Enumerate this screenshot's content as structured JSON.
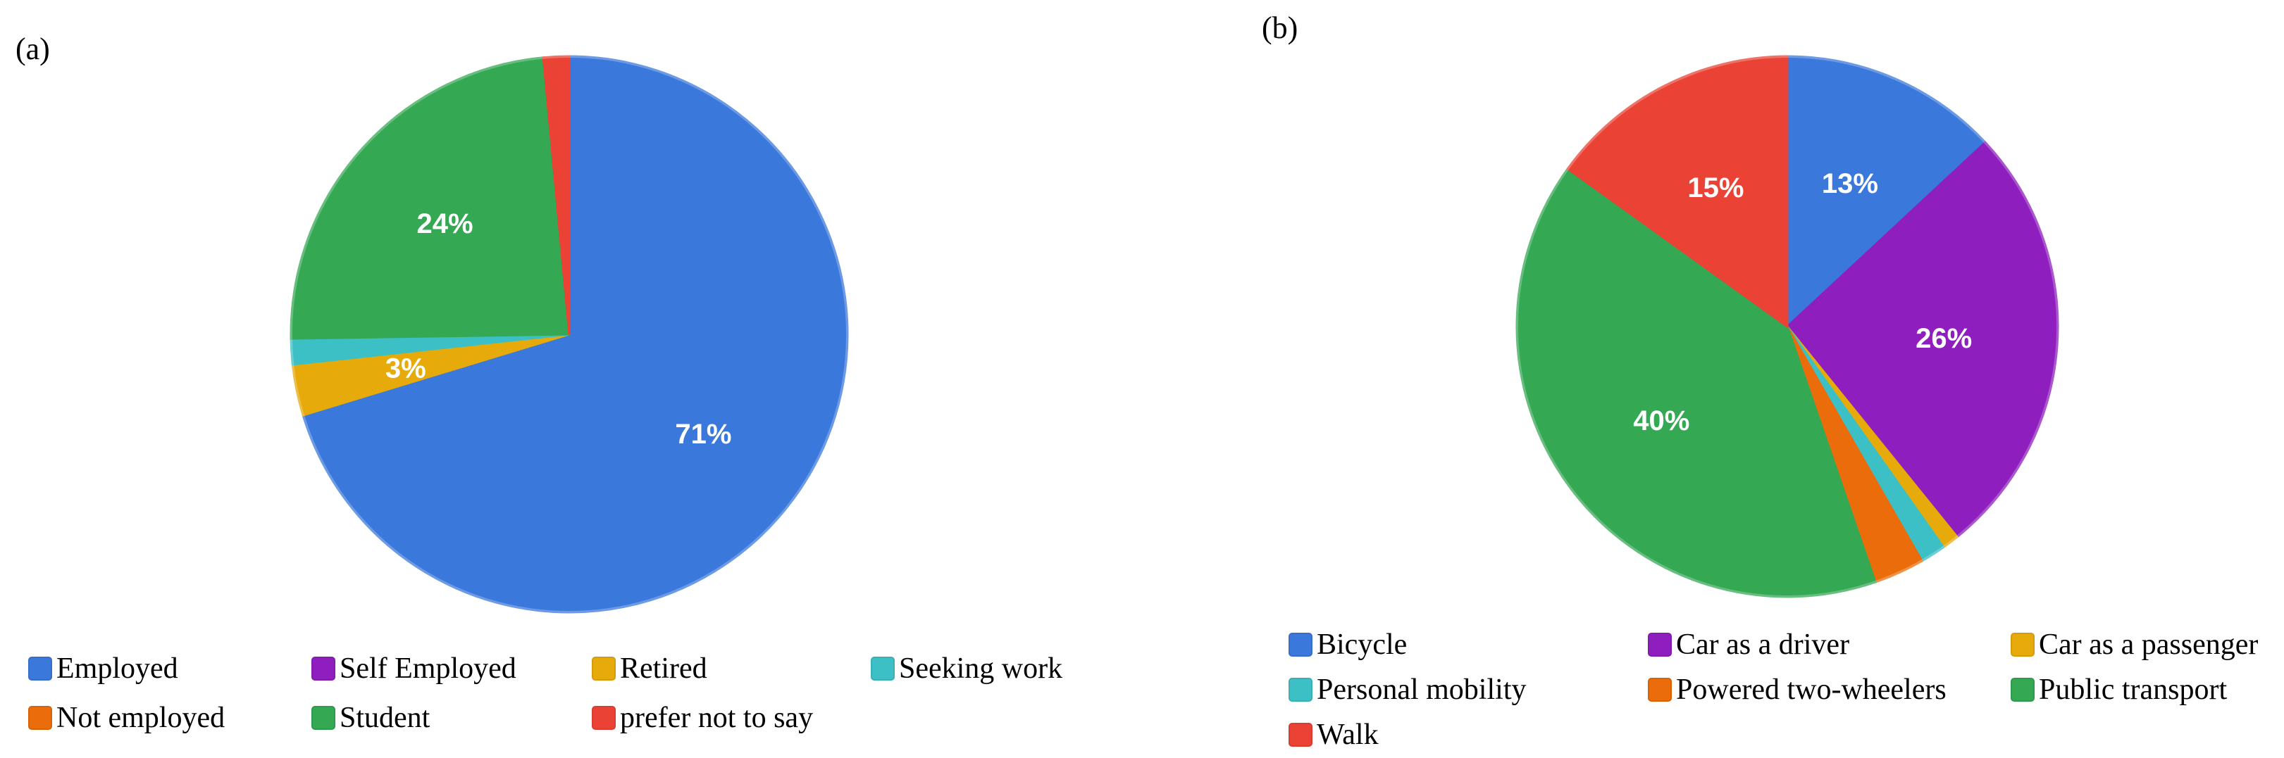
{
  "chart_data": [
    {
      "type": "pie",
      "panel_label": "(a)",
      "title": "",
      "slices": [
        {
          "label": "Employed",
          "value": 71,
          "color": "#3b78db",
          "text": "71%"
        },
        {
          "label": "Self Employed",
          "value": 0,
          "color": "#8e1ebd",
          "text": ""
        },
        {
          "label": "Retired",
          "value": 3,
          "color": "#e6aa0b",
          "text": "3%"
        },
        {
          "label": "Seeking work",
          "value": 1.5,
          "color": "#3dbfc6",
          "text": ""
        },
        {
          "label": "Not employed",
          "value": 0,
          "color": "#ea6c0a",
          "text": ""
        },
        {
          "label": "Student",
          "value": 24,
          "color": "#34a853",
          "text": "24%"
        },
        {
          "label": "prefer not to say",
          "value": 1.5,
          "color": "#ea4335",
          "text": ""
        }
      ],
      "legend_position": "bottom"
    },
    {
      "type": "pie",
      "panel_label": "(b)",
      "title": "",
      "slices": [
        {
          "label": "Bicycle",
          "value": 13,
          "color": "#3b78db",
          "text": "13%"
        },
        {
          "label": "Car as a driver",
          "value": 26,
          "color": "#8e1ebd",
          "text": "26%"
        },
        {
          "label": "Car as a passenger",
          "value": 1,
          "color": "#e6aa0b",
          "text": ""
        },
        {
          "label": "Personal mobility",
          "value": 1.5,
          "color": "#3dbfc6",
          "text": ""
        },
        {
          "label": "Powered two-wheelers",
          "value": 3,
          "color": "#ea6c0a",
          "text": ""
        },
        {
          "label": "Public transport",
          "value": 40,
          "color": "#34a853",
          "text": "40%"
        },
        {
          "label": "Walk",
          "value": 15,
          "color": "#ea4335",
          "text": "15%"
        }
      ],
      "legend_position": "bottom"
    }
  ]
}
